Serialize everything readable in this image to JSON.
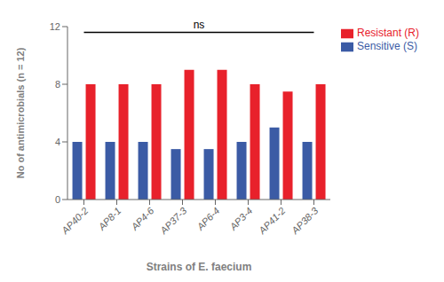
{
  "chart_data": {
    "type": "bar",
    "categories": [
      "AP40-2",
      "AP8-1",
      "AP4-6",
      "AP37-3",
      "AP6-4",
      "AP3-4",
      "AP41-2",
      "AP38-3"
    ],
    "series": [
      {
        "name": "Sensitive (S)",
        "color": "#3B5BA5",
        "values": [
          4,
          4,
          4,
          3.5,
          3.5,
          4,
          5,
          4
        ]
      },
      {
        "name": "Resistant (R)",
        "color": "#E8212B",
        "values": [
          8,
          8,
          8,
          9,
          9,
          8,
          7.5,
          8
        ]
      }
    ],
    "ylabel": "No of antimicrobials (n = 12)",
    "xlabel": "Strains of E. faecium",
    "ylim": [
      0,
      12
    ],
    "yticks": [
      0,
      4,
      8,
      12
    ],
    "grid": false,
    "legend": "right",
    "annotations": [
      {
        "text": "ns",
        "y": 11.6
      }
    ]
  }
}
